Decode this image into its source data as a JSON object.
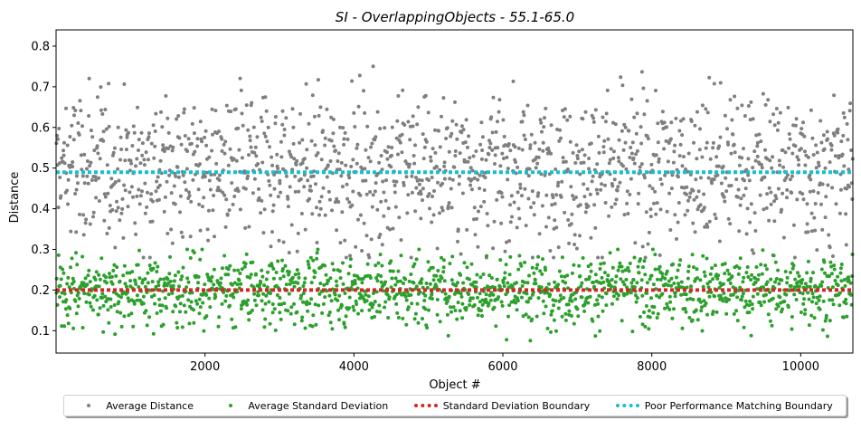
{
  "chart_data": {
    "type": "scatter",
    "title": "SI - OverlappingObjects - 55.1-65.0",
    "xlabel": "Object #",
    "ylabel": "Distance",
    "xlim": [
      0,
      10700
    ],
    "ylim": [
      0.045,
      0.84
    ],
    "x_ticks": [
      "2000",
      "4000",
      "6000",
      "8000",
      "10000"
    ],
    "y_ticks": [
      "0.1",
      "0.2",
      "0.3",
      "0.4",
      "0.5",
      "0.6",
      "0.7",
      "0.8"
    ],
    "x_tick_values": [
      2000,
      4000,
      6000,
      8000,
      10000
    ],
    "y_tick_values": [
      0.1,
      0.2,
      0.3,
      0.4,
      0.5,
      0.6,
      0.7,
      0.8
    ],
    "grid": false,
    "legend_placement": "bottom-center",
    "series": [
      {
        "name": "Average Distance",
        "kind": "scatter",
        "color": "#7f7f7f",
        "point_count": 1500,
        "x_range": [
          0,
          10700
        ],
        "y_range": [
          0.28,
          0.84
        ],
        "y_mean": 0.5
      },
      {
        "name": "Average Standard Deviation",
        "kind": "scatter",
        "color": "#2ca02c",
        "point_count": 1500,
        "x_range": [
          0,
          10700
        ],
        "y_range": [
          0.05,
          0.3
        ],
        "y_mean": 0.2
      },
      {
        "name": "Standard Deviation Boundary",
        "kind": "hline",
        "color": "#d62728",
        "y": 0.2
      },
      {
        "name": "Poor Performance Matching Boundary",
        "kind": "hline",
        "color": "#17becf",
        "y": 0.49
      }
    ]
  }
}
